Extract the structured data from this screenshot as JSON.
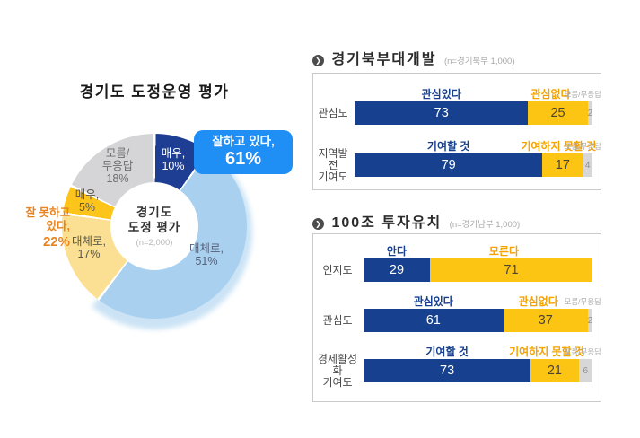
{
  "donut": {
    "title": "경기도 도정운영 평가",
    "center": {
      "line1": "경기도",
      "line2": "도정 평가",
      "note": "(n=2,000)"
    },
    "callout": {
      "label": "잘하고 있다,",
      "value": "61%",
      "color": "#1f8ef5"
    },
    "negative": {
      "line1": "잘 못하고",
      "line2": "있다,",
      "value": "22%",
      "color": "#e8831e"
    },
    "segments": [
      {
        "lines": [
          "매우,",
          "10%"
        ],
        "pct": 10,
        "color": "#1d3e92"
      },
      {
        "lines": [
          "대체로,",
          "51%"
        ],
        "pct": 51,
        "color": "#a9d1ef"
      },
      {
        "lines": [
          "대체로,",
          "17%"
        ],
        "pct": 17,
        "color": "#fbe093"
      },
      {
        "lines": [
          "매우,",
          "5%"
        ],
        "pct": 5,
        "color": "#fdc41c"
      },
      {
        "lines": [
          "모름/",
          "무응답",
          "18%"
        ],
        "pct": 18,
        "color": "#d5d5d7"
      }
    ]
  },
  "sections": [
    {
      "title": "경기북부대개발",
      "sample": "(n=경기북부  1,000)",
      "rows": [
        {
          "label": "관심도",
          "label2": "",
          "pos_header": "관심있다",
          "neg_header": "관심없다",
          "dk_header": "모름/무응답",
          "pos": "73",
          "neg": "25",
          "dk": "2",
          "pos_w": 73,
          "neg_w": 25,
          "dk_w": 2
        },
        {
          "label": "지역발전",
          "label2": "기여도",
          "pos_header": "기여할 것",
          "neg_header": "기여하지 못할 것",
          "dk_header": "모름/무응답",
          "pos": "79",
          "neg": "17",
          "dk": "4",
          "pos_w": 79,
          "neg_w": 17,
          "dk_w": 4
        }
      ]
    },
    {
      "title": "100조 투자유치",
      "sample": "(n=경기남부  1,000)",
      "rows": [
        {
          "label": "인지도",
          "label2": "",
          "pos_header": "안다",
          "neg_header": "모른다",
          "dk_header": "",
          "pos": "29",
          "neg": "71",
          "dk": "",
          "pos_w": 29,
          "neg_w": 71,
          "dk_w": 0
        },
        {
          "label": "관심도",
          "label2": "",
          "pos_header": "관심있다",
          "neg_header": "관심없다",
          "dk_header": "모름/무응답",
          "pos": "61",
          "neg": "37",
          "dk": "2",
          "pos_w": 61,
          "neg_w": 37,
          "dk_w": 2
        },
        {
          "label": "경제활성화",
          "label2": "기여도",
          "pos_header": "기여할 것",
          "neg_header": "기여하지 못할 것",
          "dk_header": "모름/무응답",
          "pos": "73",
          "neg": "21",
          "dk": "6",
          "pos_w": 73,
          "neg_w": 21,
          "dk_w": 6
        }
      ]
    }
  ],
  "colors": {
    "bar_positive": "#17418f",
    "bar_negative": "#fcc413",
    "bar_dontknow": "#d7d7d7",
    "header_positive": "#17418f",
    "header_negative": "#f5a300"
  },
  "chart_data": [
    {
      "type": "pie",
      "title": "경기도 도정운영 평가",
      "subtitle": "경기도 도정 평가 (n=2,000)",
      "labels": [
        "잘하고 있다 - 매우",
        "잘하고 있다 - 대체로",
        "잘 못하고 있다 - 대체로",
        "잘 못하고 있다 - 매우",
        "모름/무응답"
      ],
      "values": [
        10,
        51,
        17,
        5,
        18
      ],
      "annotations": [
        "잘하고 있다, 61%",
        "잘 못하고 있다, 22%"
      ],
      "legend_position": "none"
    },
    {
      "type": "bar",
      "title": "경기북부대개발",
      "subtitle": "n=경기북부 1,000",
      "stacked": true,
      "orientation": "horizontal",
      "categories": [
        "관심도",
        "지역발전 기여도"
      ],
      "series": [
        {
          "name": "긍정(관심있다/기여할 것)",
          "values": [
            73,
            79
          ]
        },
        {
          "name": "부정(관심없다/기여하지 못할 것)",
          "values": [
            25,
            17
          ]
        },
        {
          "name": "모름/무응답",
          "values": [
            2,
            4
          ]
        }
      ],
      "xlim": [
        0,
        100
      ]
    },
    {
      "type": "bar",
      "title": "100조 투자유치",
      "subtitle": "n=경기남부 1,000",
      "stacked": true,
      "orientation": "horizontal",
      "categories": [
        "인지도",
        "관심도",
        "경제활성화 기여도"
      ],
      "series": [
        {
          "name": "긍정(안다/관심있다/기여할 것)",
          "values": [
            29,
            61,
            73
          ]
        },
        {
          "name": "부정(모른다/관심없다/기여하지 못할 것)",
          "values": [
            71,
            37,
            21
          ]
        },
        {
          "name": "모름/무응답",
          "values": [
            0,
            2,
            6
          ]
        }
      ],
      "xlim": [
        0,
        100
      ]
    }
  ]
}
